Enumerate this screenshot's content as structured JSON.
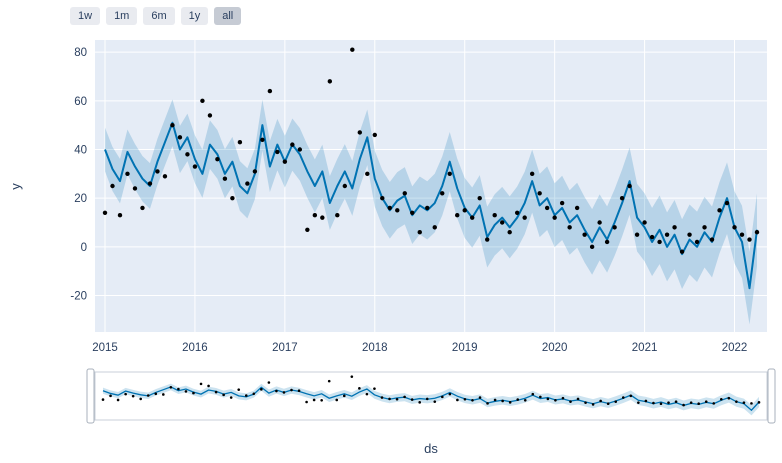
{
  "range_selector": {
    "buttons": [
      {
        "label": "1w",
        "active": false
      },
      {
        "label": "1m",
        "active": false
      },
      {
        "label": "6m",
        "active": false
      },
      {
        "label": "1y",
        "active": false
      },
      {
        "label": "all",
        "active": true
      }
    ]
  },
  "colors": {
    "plot_bg": "#e5ecf6",
    "grid": "#ffffff",
    "line": "#0072b2",
    "band": "rgba(0,114,178,0.2)",
    "marker": "#000000",
    "tick_text": "#2a3f5f",
    "slider_bg": "#ffffff",
    "slider_border": "#c8cfd9",
    "handle_border": "#a9b1bc"
  },
  "chart_data": {
    "type": "line",
    "title": "",
    "xlabel": "ds",
    "ylabel": "y",
    "ylim": [
      -35,
      85
    ],
    "grid": true,
    "legend": "none",
    "x": [
      "2015-01",
      "2015-02",
      "2015-03",
      "2015-04",
      "2015-05",
      "2015-06",
      "2015-07",
      "2015-08",
      "2015-09",
      "2015-10",
      "2015-11",
      "2015-12",
      "2016-01",
      "2016-02",
      "2016-03",
      "2016-04",
      "2016-05",
      "2016-06",
      "2016-07",
      "2016-08",
      "2016-09",
      "2016-10",
      "2016-11",
      "2016-12",
      "2017-01",
      "2017-02",
      "2017-03",
      "2017-04",
      "2017-05",
      "2017-06",
      "2017-07",
      "2017-08",
      "2017-09",
      "2017-10",
      "2017-11",
      "2017-12",
      "2018-01",
      "2018-02",
      "2018-03",
      "2018-04",
      "2018-05",
      "2018-06",
      "2018-07",
      "2018-08",
      "2018-09",
      "2018-10",
      "2018-11",
      "2018-12",
      "2019-01",
      "2019-02",
      "2019-03",
      "2019-04",
      "2019-05",
      "2019-06",
      "2019-07",
      "2019-08",
      "2019-09",
      "2019-10",
      "2019-11",
      "2019-12",
      "2020-01",
      "2020-02",
      "2020-03",
      "2020-04",
      "2020-05",
      "2020-06",
      "2020-07",
      "2020-08",
      "2020-09",
      "2020-10",
      "2020-11",
      "2020-12",
      "2021-01",
      "2021-02",
      "2021-03",
      "2021-04",
      "2021-05",
      "2021-06",
      "2021-07",
      "2021-08",
      "2021-09",
      "2021-10",
      "2021-11",
      "2021-12",
      "2022-01",
      "2022-02",
      "2022-03",
      "2022-04"
    ],
    "series": [
      {
        "name": "actual",
        "type": "scatter",
        "values": [
          14,
          25,
          13,
          30,
          24,
          16,
          26,
          31,
          29,
          50,
          45,
          38,
          33,
          60,
          54,
          36,
          28,
          20,
          43,
          26,
          31,
          44,
          64,
          39,
          35,
          42,
          40,
          7,
          13,
          12,
          68,
          13,
          25,
          81,
          47,
          30,
          46,
          20,
          16,
          15,
          22,
          14,
          6,
          16,
          8,
          22,
          30,
          13,
          15,
          12,
          20,
          3,
          13,
          10,
          6,
          14,
          12,
          30,
          22,
          16,
          12,
          18,
          8,
          16,
          5,
          0,
          10,
          2,
          8,
          20,
          25,
          5,
          10,
          4,
          2,
          5,
          8,
          -2,
          5,
          2,
          8,
          3,
          15,
          18,
          8,
          5,
          3,
          6
        ]
      },
      {
        "name": "forecast",
        "type": "line",
        "values": [
          40,
          32,
          27,
          39,
          33,
          28,
          25,
          35,
          43,
          51,
          40,
          45,
          36,
          30,
          42,
          38,
          30,
          35,
          25,
          22,
          30,
          50,
          33,
          42,
          35,
          42,
          38,
          31,
          25,
          31,
          18,
          25,
          31,
          24,
          36,
          45,
          28,
          20,
          15,
          19,
          21,
          13,
          17,
          15,
          18,
          25,
          35,
          24,
          16,
          12,
          17,
          4,
          9,
          12,
          8,
          12,
          18,
          27,
          17,
          20,
          13,
          16,
          10,
          13,
          7,
          2,
          8,
          3,
          10,
          18,
          27,
          12,
          8,
          2,
          7,
          0,
          5,
          -3,
          3,
          0,
          6,
          2,
          12,
          20,
          8,
          2,
          -17,
          7
        ]
      }
    ],
    "band": {
      "halfwidth_start": 9,
      "halfwidth_end": 15
    },
    "x_ticks": [
      {
        "label": "2015",
        "index": 0
      },
      {
        "label": "2016",
        "index": 12
      },
      {
        "label": "2017",
        "index": 24
      },
      {
        "label": "2018",
        "index": 36
      },
      {
        "label": "2019",
        "index": 48
      },
      {
        "label": "2020",
        "index": 60
      },
      {
        "label": "2021",
        "index": 72
      },
      {
        "label": "2022",
        "index": 84
      }
    ],
    "y_ticks": [
      -20,
      0,
      20,
      40,
      60,
      80
    ]
  }
}
